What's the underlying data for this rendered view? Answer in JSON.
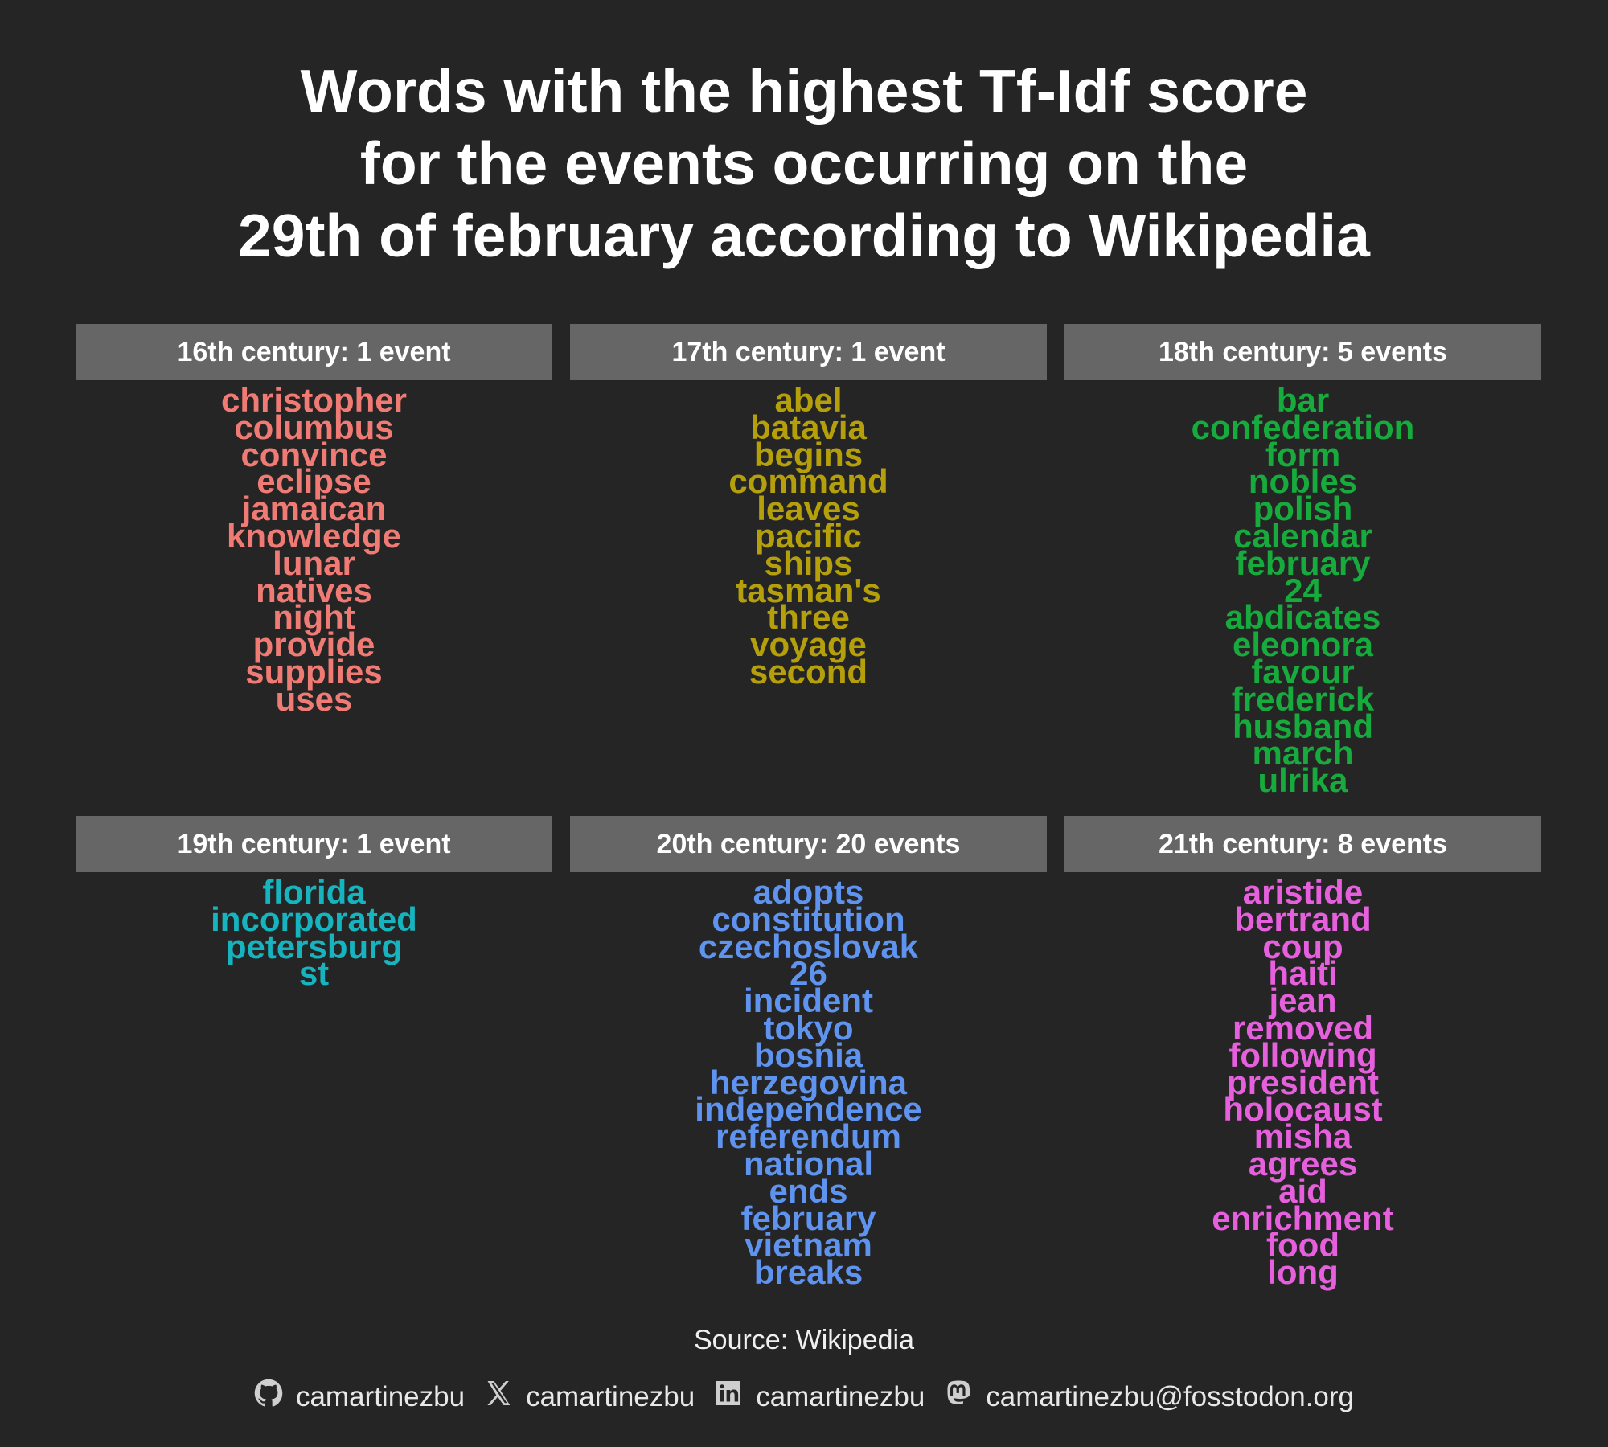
{
  "title_lines": [
    "Words with the highest Tf-Idf score",
    "for the events occurring on the",
    "29th of february according to Wikipedia"
  ],
  "chart_data": {
    "type": "table",
    "panels": [
      {
        "header": "16th century: 1 event",
        "color": "#f07a74",
        "words": [
          "christopher",
          "columbus",
          "convince",
          "eclipse",
          "jamaican",
          "knowledge",
          "lunar",
          "natives",
          "night",
          "provide",
          "supplies",
          "uses"
        ]
      },
      {
        "header": "17th century: 1 event",
        "color": "#b5a00c",
        "words": [
          "abel",
          "batavia",
          "begins",
          "command",
          "leaves",
          "pacific",
          "ships",
          "tasman's",
          "three",
          "voyage",
          "second"
        ]
      },
      {
        "header": "18th century: 5 events",
        "color": "#16ab3c",
        "words": [
          "bar",
          "confederation",
          "form",
          "nobles",
          "polish",
          "calendar",
          "february",
          "24",
          "abdicates",
          "eleonora",
          "favour",
          "frederick",
          "husband",
          "march",
          "ulrika"
        ]
      },
      {
        "header": "19th century: 1 event",
        "color": "#16b4bf",
        "words": [
          "florida",
          "incorporated",
          "petersburg",
          "st"
        ]
      },
      {
        "header": "20th century: 20 events",
        "color": "#5f93f0",
        "words": [
          "adopts",
          "constitution",
          "czechoslovak",
          "26",
          "incident",
          "tokyo",
          "bosnia",
          "herzegovina",
          "independence",
          "referendum",
          "national",
          "ends",
          "february",
          "vietnam",
          "breaks"
        ]
      },
      {
        "header": "21th century: 8 events",
        "color": "#e660de",
        "words": [
          "aristide",
          "bertrand",
          "coup",
          "haiti",
          "jean",
          "removed",
          "following",
          "president",
          "holocaust",
          "misha",
          "agrees",
          "aid",
          "enrichment",
          "food",
          "long"
        ]
      }
    ]
  },
  "source": "Source: Wikipedia",
  "social": [
    {
      "icon": "github-icon",
      "label": "camartinezbu"
    },
    {
      "icon": "x-icon",
      "label": "camartinezbu"
    },
    {
      "icon": "linkedin-icon",
      "label": "camartinezbu"
    },
    {
      "icon": "mastodon-icon",
      "label": "camartinezbu@fosstodon.org"
    }
  ]
}
